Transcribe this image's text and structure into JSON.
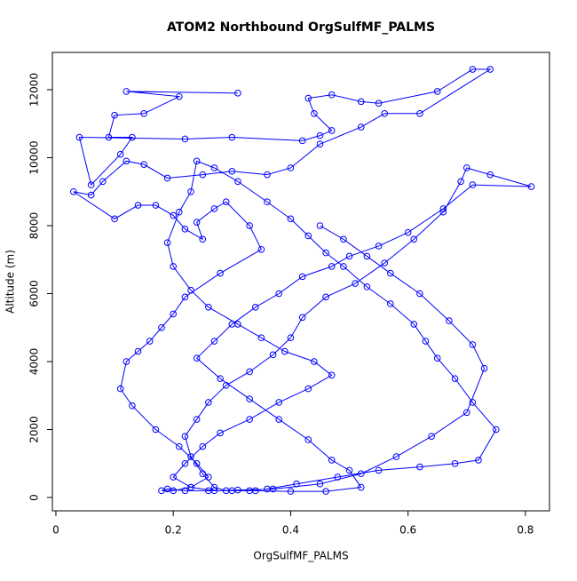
{
  "chart_data": {
    "type": "line",
    "title": "ATOM2 Northbound OrgSulfMF_PALMS",
    "x_label": "OrgSulfMF_PALMS",
    "y_label": "Altitude (m)",
    "color": "#0000ff",
    "markers": true,
    "xlim": [
      -0.006,
      0.841
    ],
    "ylim": [
      -392,
      13098
    ],
    "xticks": [
      0.0,
      0.2,
      0.4,
      0.6,
      0.8
    ],
    "yticks": [
      0,
      2000,
      4000,
      6000,
      8000,
      10000,
      12000
    ],
    "x": [
      0.31,
      0.12,
      0.21,
      0.15,
      0.1,
      0.09,
      0.13,
      0.11,
      0.06,
      0.04,
      0.22,
      0.3,
      0.42,
      0.45,
      0.47,
      0.44,
      0.43,
      0.47,
      0.52,
      0.55,
      0.65,
      0.71,
      0.74,
      0.62,
      0.56,
      0.52,
      0.45,
      0.4,
      0.36,
      0.3,
      0.25,
      0.19,
      0.15,
      0.12,
      0.08,
      0.06,
      0.03,
      0.1,
      0.14,
      0.17,
      0.2,
      0.22,
      0.25,
      0.24,
      0.27,
      0.29,
      0.33,
      0.35,
      0.28,
      0.22,
      0.2,
      0.18,
      0.16,
      0.14,
      0.12,
      0.11,
      0.13,
      0.17,
      0.21,
      0.24,
      0.26,
      0.23,
      0.2,
      0.18,
      0.19,
      0.22,
      0.26,
      0.3,
      0.34,
      0.4,
      0.46,
      0.52,
      0.5,
      0.47,
      0.43,
      0.38,
      0.33,
      0.28,
      0.24,
      0.27,
      0.3,
      0.34,
      0.38,
      0.42,
      0.47,
      0.5,
      0.55,
      0.6,
      0.66,
      0.71,
      0.81,
      0.74,
      0.7,
      0.69,
      0.66,
      0.61,
      0.56,
      0.51,
      0.46,
      0.42,
      0.4,
      0.37,
      0.33,
      0.29,
      0.26,
      0.24,
      0.22,
      0.23,
      0.25,
      0.27,
      0.29,
      0.33,
      0.36,
      0.41,
      0.48,
      0.55,
      0.62,
      0.68,
      0.72,
      0.75,
      0.71,
      0.68,
      0.65,
      0.63,
      0.61,
      0.57,
      0.53,
      0.49,
      0.46,
      0.43,
      0.4,
      0.36,
      0.31,
      0.27,
      0.24,
      0.23,
      0.21,
      0.19,
      0.2,
      0.23,
      0.26,
      0.31,
      0.35,
      0.39,
      0.44,
      0.47,
      0.43,
      0.38,
      0.33,
      0.28,
      0.25,
      0.22,
      0.2,
      0.23,
      0.27,
      0.31,
      0.37,
      0.45,
      0.52,
      0.58,
      0.64,
      0.7,
      0.73,
      0.71,
      0.67,
      0.62,
      0.57,
      0.53,
      0.49,
      0.45
    ],
    "values": [
      11900,
      11950,
      11800,
      11300,
      11250,
      10600,
      10600,
      10100,
      9200,
      10600,
      10550,
      10600,
      10500,
      10650,
      10800,
      11300,
      11750,
      11850,
      11650,
      11600,
      11950,
      12600,
      12600,
      11300,
      11300,
      10900,
      10400,
      9700,
      9500,
      9600,
      9500,
      9400,
      9800,
      9900,
      9300,
      8900,
      9000,
      8200,
      8600,
      8600,
      8300,
      7900,
      7600,
      8100,
      8500,
      8700,
      8000,
      7300,
      6600,
      5900,
      5400,
      5000,
      4600,
      4300,
      4000,
      3200,
      2700,
      2000,
      1500,
      1000,
      600,
      300,
      200,
      200,
      250,
      200,
      200,
      200,
      200,
      180,
      180,
      300,
      800,
      1100,
      1700,
      2300,
      2900,
      3500,
      4100,
      4600,
      5100,
      5600,
      6000,
      6500,
      6800,
      7100,
      7400,
      7800,
      8500,
      9200,
      9150,
      9500,
      9700,
      9300,
      8400,
      7600,
      6900,
      6300,
      5900,
      5300,
      4700,
      4200,
      3700,
      3300,
      2800,
      2300,
      1800,
      1200,
      700,
      300,
      200,
      200,
      250,
      400,
      600,
      800,
      900,
      1000,
      1100,
      2000,
      2800,
      3500,
      4100,
      4600,
      5100,
      5700,
      6200,
      6800,
      7200,
      7700,
      8200,
      8700,
      9300,
      9700,
      9900,
      9000,
      8400,
      7500,
      6800,
      6100,
      5600,
      5100,
      4700,
      4300,
      4000,
      3600,
      3200,
      2800,
      2300,
      1900,
      1500,
      1000,
      600,
      300,
      200,
      220,
      250,
      400,
      700,
      1200,
      1800,
      2500,
      3800,
      4500,
      5200,
      6000,
      6600,
      7100,
      7600,
      8000
    ]
  }
}
